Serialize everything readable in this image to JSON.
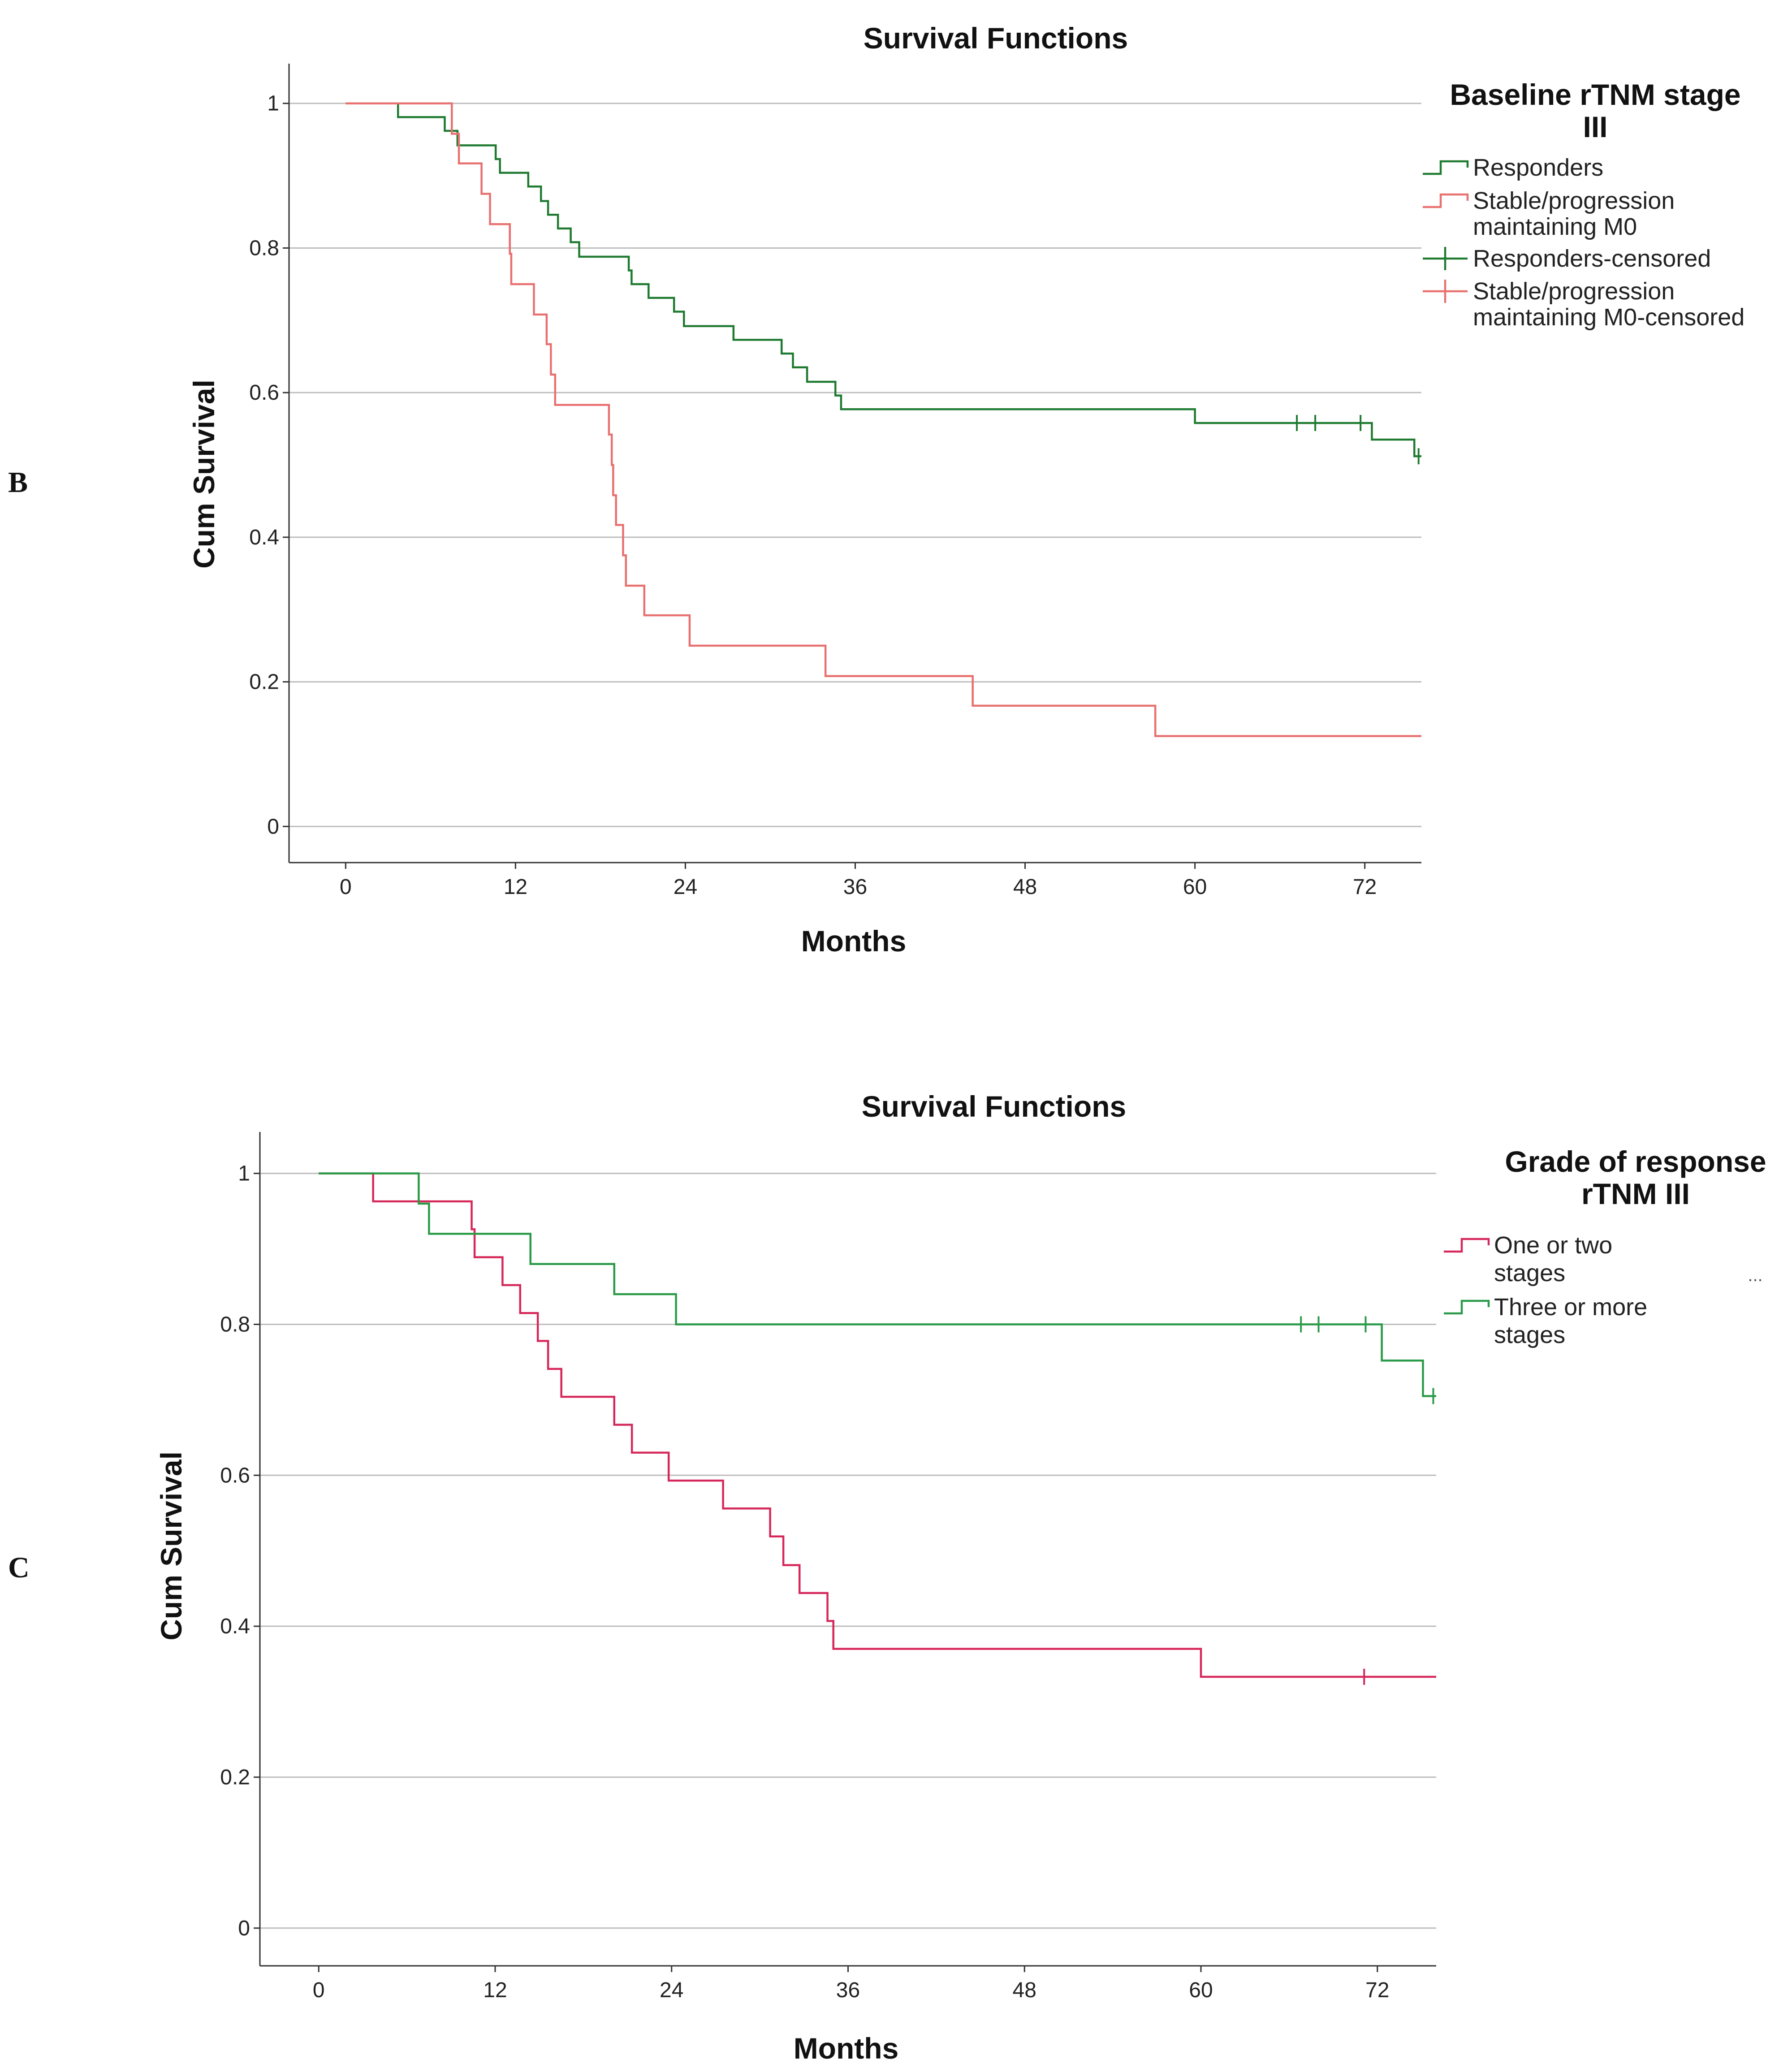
{
  "chart_data": [
    {
      "type": "line",
      "panel_label": "B",
      "title": "Survival Functions",
      "xlabel": "Months",
      "ylabel": "Cum Survival",
      "xlim": [
        -4,
        76
      ],
      "ylim": [
        -0.05,
        1.055
      ],
      "xticks": [
        0,
        12,
        24,
        36,
        48,
        60,
        72
      ],
      "yticks": [
        0.0,
        0.2,
        0.4,
        0.6,
        0.8,
        1.0
      ],
      "grid": "horizontal",
      "legend": {
        "placement": "right",
        "title_lines": [
          "Baseline rTNM stage",
          "III"
        ],
        "entries": [
          {
            "lines": [
              "Responders"
            ],
            "symbol": "step",
            "color": "#1f7a30"
          },
          {
            "lines": [
              "Stable/progression",
              "maintaining M0"
            ],
            "symbol": "step",
            "color": "#e8706f"
          },
          {
            "lines": [
              "Responders-censored"
            ],
            "symbol": "cross",
            "color": "#1f7a30"
          },
          {
            "lines": [
              "Stable/progression",
              "maintaining M0-censored"
            ],
            "symbol": "cross",
            "color": "#e8706f"
          }
        ]
      },
      "series": [
        {
          "name": "Responders",
          "color": "#1f7a30",
          "steps": [
            [
              0,
              1.0
            ],
            [
              3.7,
              0.981
            ],
            [
              7.0,
              0.962
            ],
            [
              7.9,
              0.942
            ],
            [
              10.6,
              0.923
            ],
            [
              10.9,
              0.904
            ],
            [
              12.9,
              0.885
            ],
            [
              13.8,
              0.865
            ],
            [
              14.3,
              0.846
            ],
            [
              15.0,
              0.827
            ],
            [
              15.9,
              0.808
            ],
            [
              16.5,
              0.788
            ],
            [
              20.0,
              0.769
            ],
            [
              20.2,
              0.75
            ],
            [
              21.4,
              0.731
            ],
            [
              23.2,
              0.712
            ],
            [
              23.9,
              0.692
            ],
            [
              27.4,
              0.673
            ],
            [
              30.8,
              0.654
            ],
            [
              31.6,
              0.635
            ],
            [
              32.6,
              0.615
            ],
            [
              34.6,
              0.596
            ],
            [
              35.0,
              0.577
            ],
            [
              60.0,
              0.558
            ],
            [
              72.5,
              0.535
            ],
            [
              75.5,
              0.512
            ]
          ],
          "end_x": 76,
          "censored": [
            [
              67.2,
              0.558
            ],
            [
              68.5,
              0.558
            ],
            [
              71.7,
              0.558
            ],
            [
              75.8,
              0.512
            ]
          ]
        },
        {
          "name": "Stable/progression maintaining M0",
          "color": "#e8706f",
          "steps": [
            [
              0,
              1.0
            ],
            [
              7.5,
              0.958
            ],
            [
              8.0,
              0.917
            ],
            [
              9.6,
              0.875
            ],
            [
              10.2,
              0.833
            ],
            [
              11.6,
              0.792
            ],
            [
              11.7,
              0.75
            ],
            [
              13.3,
              0.708
            ],
            [
              14.2,
              0.667
            ],
            [
              14.5,
              0.625
            ],
            [
              14.8,
              0.583
            ],
            [
              18.6,
              0.542
            ],
            [
              18.8,
              0.5
            ],
            [
              18.9,
              0.458
            ],
            [
              19.1,
              0.417
            ],
            [
              19.6,
              0.375
            ],
            [
              19.8,
              0.333
            ],
            [
              21.1,
              0.292
            ],
            [
              24.3,
              0.25
            ],
            [
              33.9,
              0.208
            ],
            [
              44.3,
              0.167
            ],
            [
              57.2,
              0.125
            ]
          ],
          "end_x": 76,
          "censored": []
        }
      ]
    },
    {
      "type": "line",
      "panel_label": "C",
      "title": "Survival Functions",
      "xlabel": "Months",
      "ylabel": "Cum Survival",
      "xlim": [
        -4,
        76
      ],
      "ylim": [
        -0.05,
        1.055
      ],
      "xticks": [
        0,
        12,
        24,
        36,
        48,
        60,
        72
      ],
      "yticks": [
        0.0,
        0.2,
        0.4,
        0.6,
        0.8,
        1.0
      ],
      "grid": "horizontal",
      "legend": {
        "placement": "right",
        "title_lines": [
          "Grade of response",
          "rTNM III"
        ],
        "entries": [
          {
            "lines": [
              "One or two",
              "stages"
            ],
            "symbol": "step",
            "color": "#d6275a",
            "trailing": "..."
          },
          {
            "lines": [
              "Three or more",
              "stages"
            ],
            "symbol": "step",
            "color": "#2a9a48"
          }
        ]
      },
      "series": [
        {
          "name": "One or two stages",
          "color": "#d6275a",
          "steps": [
            [
              0,
              1.0
            ],
            [
              3.7,
              0.963
            ],
            [
              10.4,
              0.926
            ],
            [
              10.6,
              0.889
            ],
            [
              12.5,
              0.852
            ],
            [
              13.7,
              0.815
            ],
            [
              14.9,
              0.778
            ],
            [
              15.6,
              0.741
            ],
            [
              16.5,
              0.704
            ],
            [
              20.1,
              0.667
            ],
            [
              21.3,
              0.63
            ],
            [
              23.8,
              0.593
            ],
            [
              27.5,
              0.556
            ],
            [
              30.7,
              0.519
            ],
            [
              31.6,
              0.481
            ],
            [
              32.7,
              0.444
            ],
            [
              34.6,
              0.407
            ],
            [
              35.0,
              0.37
            ],
            [
              60.0,
              0.333
            ]
          ],
          "end_x": 76,
          "censored": [
            [
              71.1,
              0.333
            ]
          ]
        },
        {
          "name": "Three or more stages",
          "color": "#2a9a48",
          "steps": [
            [
              0,
              1.0
            ],
            [
              6.8,
              0.96
            ],
            [
              7.5,
              0.92
            ],
            [
              14.4,
              0.88
            ],
            [
              20.1,
              0.84
            ],
            [
              24.3,
              0.8
            ],
            [
              72.3,
              0.752
            ],
            [
              75.1,
              0.705
            ]
          ],
          "end_x": 76,
          "censored": [
            [
              66.8,
              0.8
            ],
            [
              68.0,
              0.8
            ],
            [
              71.2,
              0.8
            ],
            [
              75.8,
              0.705
            ]
          ]
        }
      ]
    }
  ]
}
